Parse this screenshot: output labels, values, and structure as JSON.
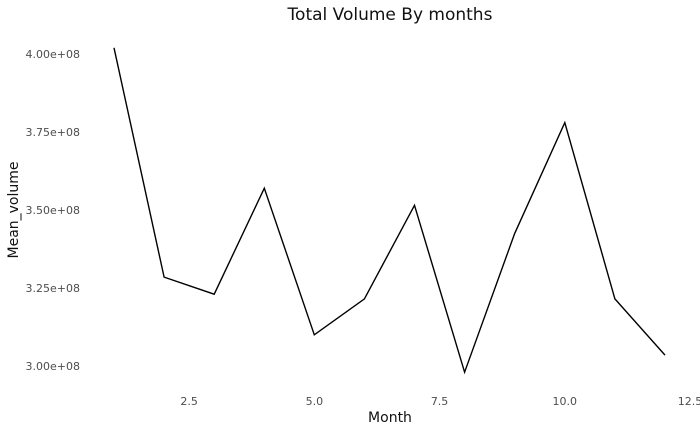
{
  "chart_data": {
    "type": "line",
    "title": "Total Volume By months",
    "xlabel": "Month",
    "ylabel": "Mean_volume",
    "xlim": [
      0.9,
      12.5
    ],
    "ylim": [
      293000000.0,
      405000000.0
    ],
    "x_ticks": [
      2.5,
      5.0,
      7.5,
      10.0,
      12.5
    ],
    "x_tick_labels": [
      "2.5",
      "5.0",
      "7.5",
      "10.0",
      "12.5"
    ],
    "y_ticks": [
      300000000.0,
      325000000.0,
      350000000.0,
      375000000.0,
      400000000.0
    ],
    "y_tick_labels": [
      "3.00e+08",
      "3.25e+08",
      "3.50e+08",
      "3.75e+08",
      "4.00e+08"
    ],
    "grid": false,
    "legend": "none",
    "series": [
      {
        "color": "#000000",
        "x": [
          1,
          2,
          3,
          4,
          5,
          6,
          7,
          8,
          9,
          10,
          11,
          12
        ],
        "values": [
          402000000,
          328500000,
          323000000,
          357000000,
          310000000,
          321500000,
          351500000,
          298000000,
          342500000,
          378000000,
          321500000,
          303500000
        ]
      }
    ]
  }
}
